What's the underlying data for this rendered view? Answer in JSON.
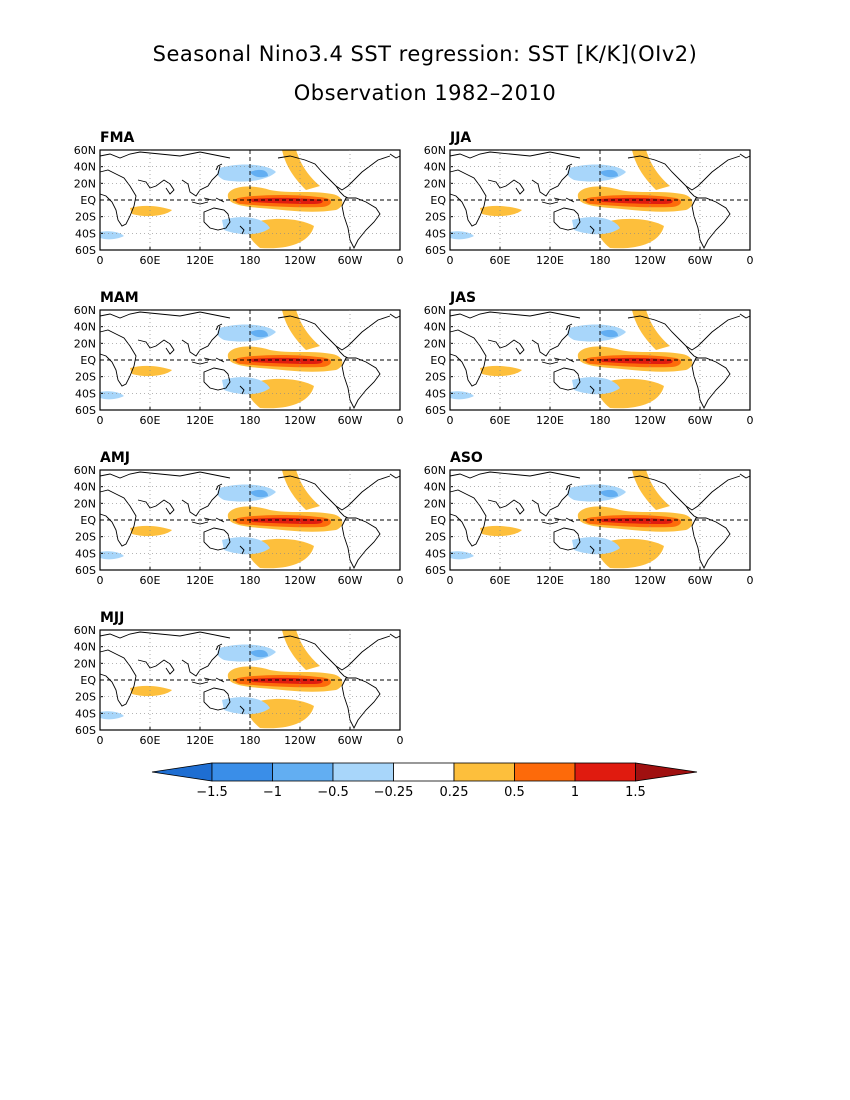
{
  "figure": {
    "title": "Seasonal Nino3.4 SST regression: SST [K/K](OIv2)",
    "subtitle": "Observation 1982–2010"
  },
  "axes": {
    "lat_ticks": [
      "60N",
      "40N",
      "20N",
      "EQ",
      "20S",
      "40S",
      "60S"
    ],
    "lon_ticks": [
      "0",
      "60E",
      "120E",
      "180",
      "120W",
      "60W",
      "0"
    ]
  },
  "panels": [
    {
      "label": "FMA"
    },
    {
      "label": "JJA"
    },
    {
      "label": "MAM"
    },
    {
      "label": "JAS"
    },
    {
      "label": "AMJ"
    },
    {
      "label": "ASO"
    },
    {
      "label": "MJJ"
    }
  ],
  "colorbar": {
    "labels": [
      "−1.5",
      "−1",
      "−0.5",
      "−0.25",
      "0.25",
      "0.5",
      "1",
      "1.5"
    ],
    "colors": [
      "#1e6ed2",
      "#3a8ee8",
      "#62aef2",
      "#a8d6fa",
      "#ffffff",
      "#fdbf3c",
      "#fd6a0a",
      "#e01b0f",
      "#a01010"
    ]
  },
  "colors": {
    "warm_light": "#fdbf3c",
    "warm_mid": "#fd6a0a",
    "warm_strong": "#e01b0f",
    "cool_light": "#a8d6fa",
    "cool_mid": "#62aef2"
  }
}
